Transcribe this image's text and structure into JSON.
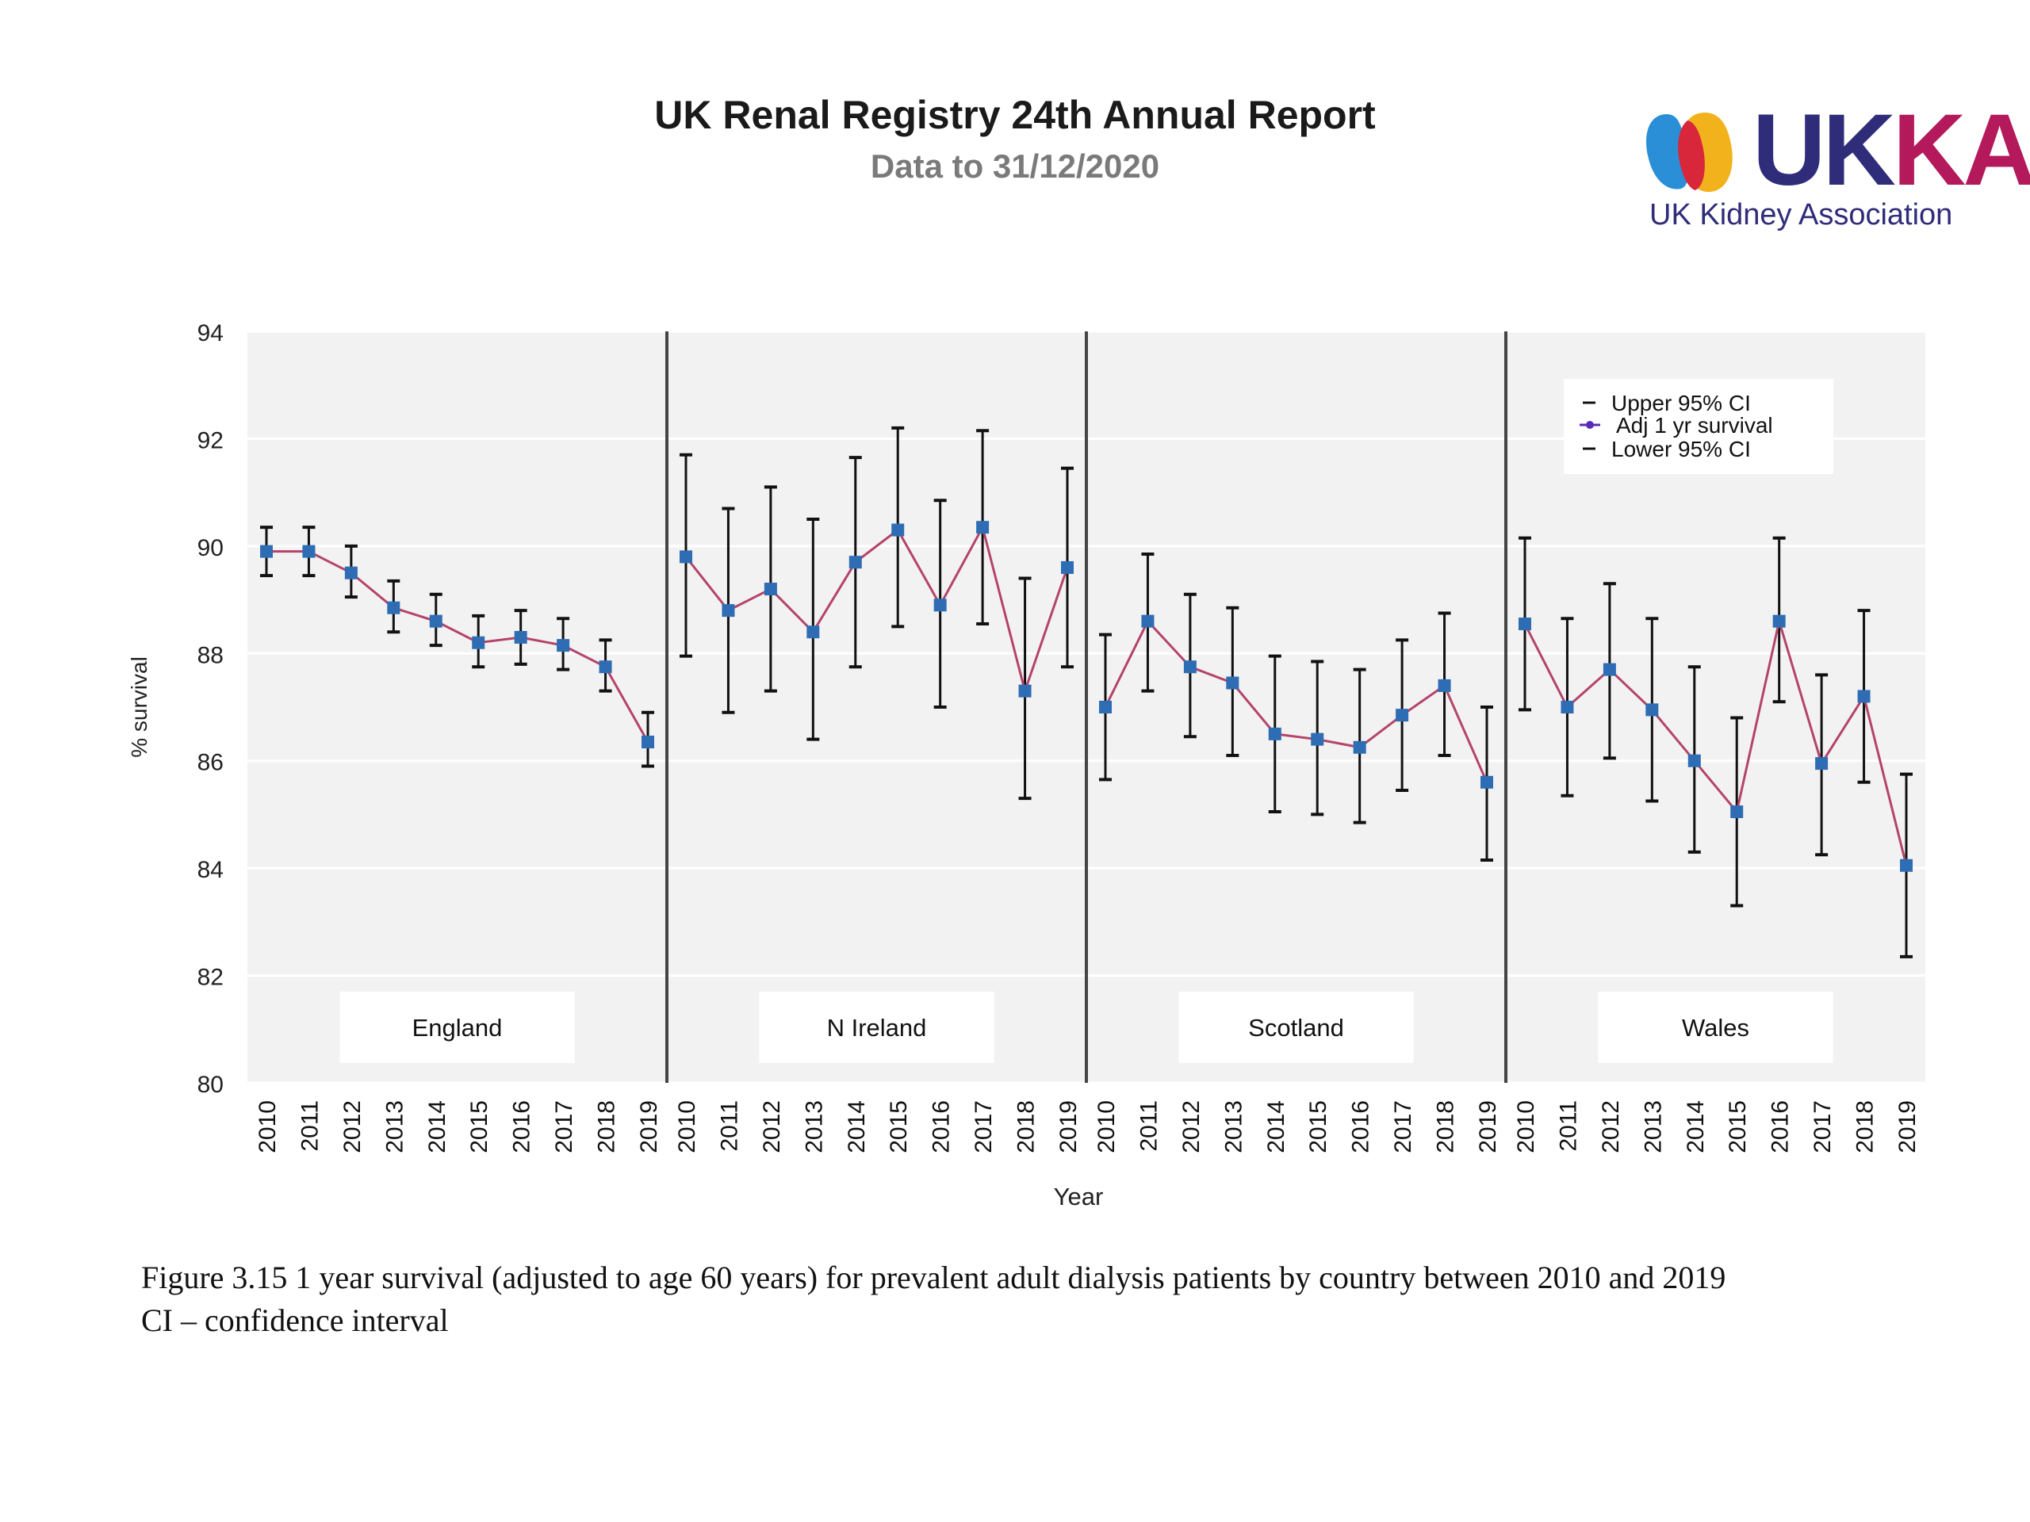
{
  "header": {
    "title": "UK Renal Registry 24th Annual Report",
    "subtitle": "Data to 31/12/2020"
  },
  "logo": {
    "text_uk": "UK",
    "text_ka": "KA",
    "subtitle": "UK Kidney Association",
    "colors": {
      "navy": "#2f2c7a",
      "magenta": "#b3195b",
      "blue": "#2a8fd6",
      "yellow": "#f2b21c",
      "red": "#d8273a"
    }
  },
  "caption": {
    "line1": "Figure 3.15 1 year survival (adjusted to age 60 years) for prevalent adult dialysis patients by country between 2010 and 2019",
    "line2": "CI – confidence interval"
  },
  "chart_data": {
    "type": "line",
    "xlabel": "Year",
    "ylabel": "% survival",
    "ylim": [
      80,
      94
    ],
    "yticks": [
      80,
      82,
      84,
      86,
      88,
      90,
      92,
      94
    ],
    "years": [
      "2010",
      "2011",
      "2012",
      "2013",
      "2014",
      "2015",
      "2016",
      "2017",
      "2018",
      "2019"
    ],
    "grid": true,
    "legend_position": "top-right",
    "legend": [
      "Upper 95% CI",
      "Adj 1 yr survival",
      "Lower 95% CI"
    ],
    "colors": {
      "line": "#b5436a",
      "marker": "#2e6db4",
      "errorbar": "#111111",
      "plot_bg": "#f2f2f2",
      "divider": "#444444"
    },
    "panels": [
      {
        "name": "England",
        "survival": [
          89.9,
          89.9,
          89.5,
          88.85,
          88.6,
          88.2,
          88.3,
          88.15,
          87.75,
          86.35
        ],
        "upper": [
          90.35,
          90.35,
          90.0,
          89.35,
          89.1,
          88.7,
          88.8,
          88.65,
          88.25,
          86.9
        ],
        "lower": [
          89.45,
          89.45,
          89.05,
          88.4,
          88.15,
          87.75,
          87.8,
          87.7,
          87.3,
          85.9
        ]
      },
      {
        "name": "N Ireland",
        "survival": [
          89.8,
          88.8,
          89.2,
          88.4,
          89.7,
          90.3,
          88.9,
          90.35,
          87.3,
          89.6
        ],
        "upper": [
          91.7,
          90.7,
          91.1,
          90.5,
          91.65,
          92.2,
          90.85,
          92.15,
          89.4,
          91.45
        ],
        "lower": [
          87.95,
          86.9,
          87.3,
          86.4,
          87.75,
          88.5,
          87.0,
          88.55,
          85.3,
          87.75
        ]
      },
      {
        "name": "Scotland",
        "survival": [
          87.0,
          88.6,
          87.75,
          87.45,
          86.5,
          86.4,
          86.25,
          86.85,
          87.4,
          85.6
        ],
        "upper": [
          88.35,
          89.85,
          89.1,
          88.85,
          87.95,
          87.85,
          87.7,
          88.25,
          88.75,
          87.0
        ],
        "lower": [
          85.65,
          87.3,
          86.45,
          86.1,
          85.05,
          85.0,
          84.85,
          85.45,
          86.1,
          84.15
        ]
      },
      {
        "name": "Wales",
        "survival": [
          88.55,
          87.0,
          87.7,
          86.95,
          86.0,
          85.05,
          88.6,
          85.95,
          87.2,
          84.05
        ],
        "upper": [
          90.15,
          88.65,
          89.3,
          88.65,
          87.75,
          86.8,
          90.15,
          87.6,
          88.8,
          85.75
        ],
        "lower": [
          86.95,
          85.35,
          86.05,
          85.25,
          84.3,
          83.3,
          87.1,
          84.25,
          85.6,
          82.35
        ]
      }
    ]
  }
}
